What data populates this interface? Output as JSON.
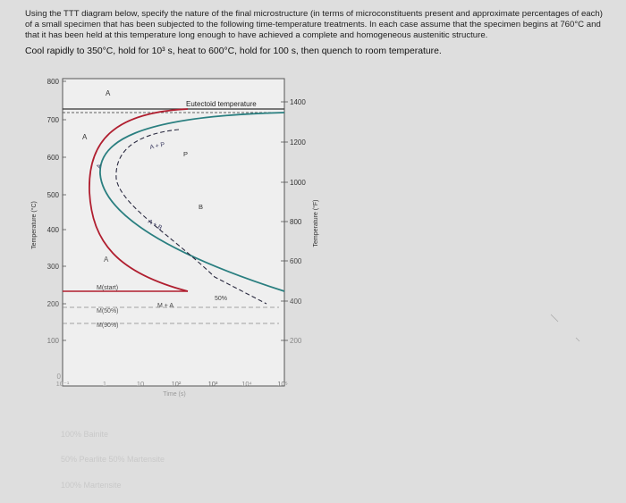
{
  "question": {
    "prompt": "Using the TTT diagram below, specify the nature of the final microstructure (in terms of microconstituents present and approximate percentages of each) of a small specimen that has been subjected to the following time-temperature treatments. In each case assume that the specimen begins at 760°C and that it has been held at this temperature long enough to have achieved a complete and homogeneous austenitic structure.",
    "treatment": "Cool rapidly to 350°C, hold for 10³ s, heat to 600°C, hold for 100 s, then quench to room temperature."
  },
  "diagram": {
    "left_axis_label": "Temperature (°C)",
    "right_axis_label": "Temperature (°F)",
    "x_axis_label": "Time (s)",
    "left_ticks": [
      "800",
      "700",
      "600",
      "500",
      "400",
      "300",
      "200",
      "100",
      "0"
    ],
    "right_ticks": [
      "1400",
      "1200",
      "1000",
      "800",
      "600",
      "400",
      "200"
    ],
    "time_ticks": [
      "10⁻¹",
      "1",
      "10",
      "10²",
      "10³",
      "10⁴",
      "10⁵"
    ],
    "labels": {
      "eutectoid": "Eutectoid temperature",
      "a_top": "A",
      "a_left": "A",
      "a_mid": "A",
      "a_nose": "A",
      "a_plus_p": "A + P",
      "a_plus_b": "A + B",
      "p": "P",
      "b": "B",
      "pct50": "50%",
      "m_start": "M(start)",
      "m50": "M(50%)",
      "m90": "M(90%)",
      "m_plus_a": "M + A"
    },
    "colors": {
      "pearlite_curve": "#b01e2f",
      "bainite_curve": "#2a7f80",
      "axes": "#333333"
    }
  },
  "answer_options": [
    "100% Bainite",
    "50% Pearlite 50% Martensite",
    "100% Martensite"
  ]
}
